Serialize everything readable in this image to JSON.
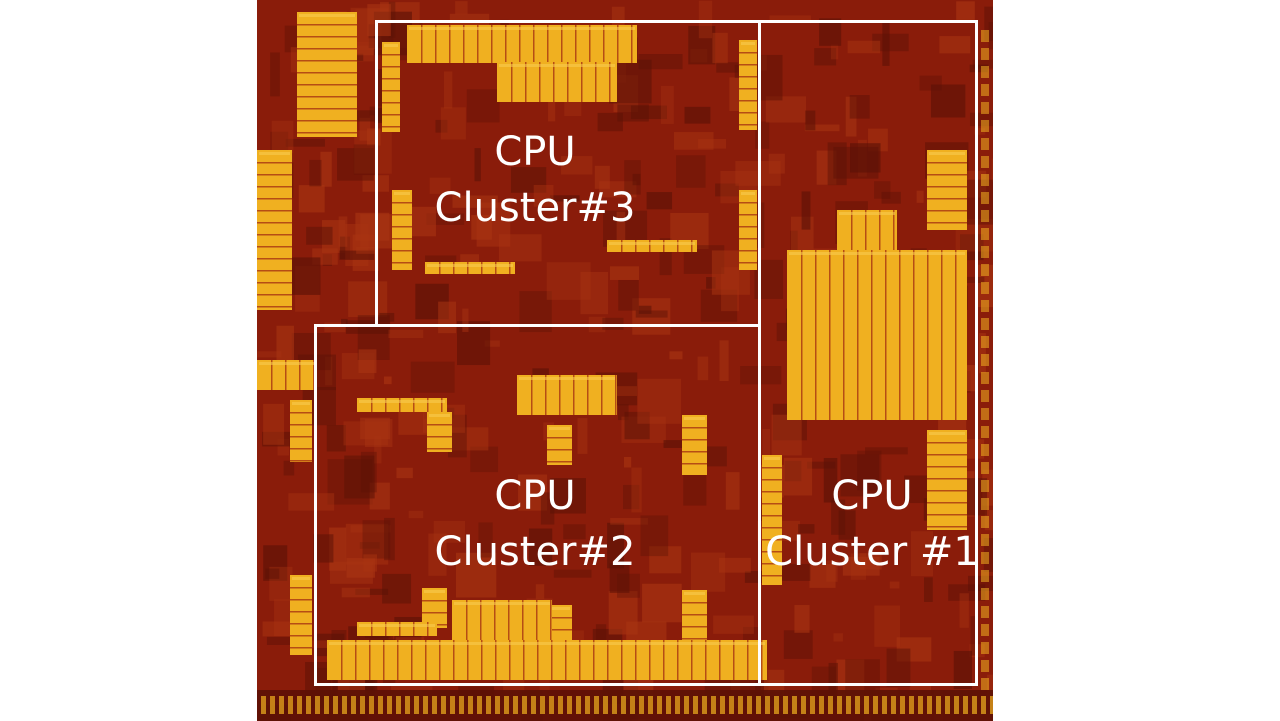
{
  "image": {
    "subject": "die-photo",
    "colors": {
      "die_base": "#8a1c0a",
      "die_dark": "#5c1206",
      "die_mid": "#a83412",
      "sram_yellow": "#f0b020",
      "sram_light": "#f8cc50",
      "outline": "#ffffff",
      "background": "#ffffff"
    }
  },
  "clusters": [
    {
      "line1": "CPU",
      "line2": "Cluster#3"
    },
    {
      "line1": "CPU",
      "line2": "Cluster#2"
    },
    {
      "line1": "CPU",
      "line2": "Cluster #1"
    }
  ]
}
